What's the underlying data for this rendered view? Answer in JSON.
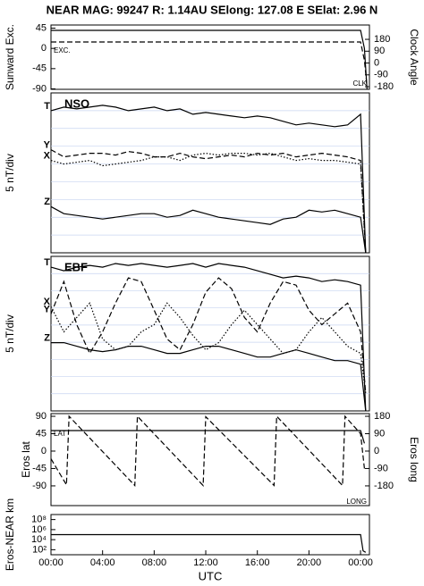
{
  "title": "NEAR MAG: 99247  R: 1.14AU  SElong: 127.08 E  SElat:   2.96 N",
  "chart_data": [
    {
      "type": "line",
      "ylabel": "Sunward Exc.",
      "y2label": "Clock Angle",
      "xlim": [
        0,
        24.69
      ],
      "ylim": [
        -91,
        52
      ],
      "yticks": [
        -90,
        -45,
        0,
        45
      ],
      "y2lim": [
        -200,
        289
      ],
      "y2ticks": [
        -180,
        -90,
        0,
        90,
        180
      ],
      "annotations": [
        "EXC.",
        "CLK"
      ],
      "series": [
        {
          "name": "Exc",
          "color": "#000000",
          "style": "solid",
          "x": [
            0,
            24,
            24.3,
            24.5
          ],
          "values": [
            40,
            40,
            0,
            -90
          ]
        },
        {
          "name": "Clk",
          "color": "#000000",
          "style": "dashed",
          "axis": "y2",
          "x": [
            0,
            24,
            24.3,
            24.5
          ],
          "values": [
            160,
            160,
            20,
            -180
          ]
        }
      ]
    },
    {
      "type": "line",
      "ylabel": "5 nT/div",
      "panel_title": "NSO",
      "grid": true,
      "xlim": [
        0,
        24.69
      ],
      "ylim": [
        0,
        45
      ],
      "show_names": true,
      "series": [
        {
          "name": "T",
          "color": "#000000",
          "style": "solid",
          "x": [
            0,
            1,
            2,
            3,
            4,
            5,
            6,
            7,
            8,
            9,
            10,
            11,
            12,
            13,
            14,
            15,
            16,
            17,
            18,
            19,
            20,
            21,
            22,
            23,
            24,
            24.4
          ],
          "values": [
            40,
            41,
            40.5,
            41,
            41.5,
            41,
            40,
            40.5,
            41,
            40,
            40.5,
            39,
            39.5,
            39,
            38.5,
            38,
            38.5,
            38,
            37,
            36,
            36.5,
            36,
            35.5,
            36,
            39,
            0
          ]
        },
        {
          "name": "Y",
          "color": "#000000",
          "style": "dashed",
          "x": [
            0,
            1,
            2,
            3,
            4,
            5,
            6,
            7,
            8,
            9,
            10,
            11,
            12,
            13,
            14,
            15,
            16,
            17,
            18,
            19,
            20,
            21,
            22,
            23,
            24,
            24.4
          ],
          "values": [
            29,
            27,
            27.5,
            28,
            28,
            27.5,
            28.5,
            28,
            27,
            27,
            28,
            27,
            26.5,
            27,
            27.5,
            27,
            28,
            27.5,
            28,
            27,
            27.5,
            28,
            27.5,
            27,
            26,
            0
          ]
        },
        {
          "name": "X",
          "color": "#000000",
          "style": "dotted",
          "x": [
            0,
            1,
            2,
            3,
            4,
            5,
            6,
            7,
            8,
            9,
            10,
            11,
            12,
            13,
            14,
            15,
            16,
            17,
            18,
            19,
            20,
            21,
            22,
            23,
            24,
            24.4
          ],
          "values": [
            26,
            25,
            25.5,
            26,
            24.5,
            25,
            25.5,
            26,
            27,
            27,
            26,
            27.5,
            28,
            27.5,
            28,
            28,
            27.5,
            28,
            27,
            26,
            26.5,
            26,
            26,
            25.5,
            25,
            0
          ]
        },
        {
          "name": "Z",
          "color": "#000000",
          "style": "solid",
          "x": [
            0,
            1,
            2,
            3,
            4,
            5,
            6,
            7,
            8,
            9,
            10,
            11,
            12,
            13,
            14,
            15,
            16,
            17,
            18,
            19,
            20,
            21,
            22,
            23,
            24,
            24.4
          ],
          "values": [
            13,
            11,
            10.5,
            10,
            9.5,
            10,
            10.5,
            11,
            11,
            10,
            10.5,
            12,
            11,
            10,
            9.5,
            9,
            8.5,
            8,
            9.5,
            10,
            12,
            11.5,
            12,
            11,
            10,
            0
          ]
        }
      ]
    },
    {
      "type": "line",
      "ylabel": "5 nT/div",
      "panel_title": "EBF",
      "grid": true,
      "xlim": [
        0,
        24.69
      ],
      "ylim": [
        0,
        43
      ],
      "show_names": true,
      "series": [
        {
          "name": "T",
          "color": "#000000",
          "style": "solid",
          "x": [
            0,
            1,
            2,
            3,
            4,
            5,
            6,
            7,
            8,
            9,
            10,
            11,
            12,
            13,
            14,
            15,
            16,
            17,
            18,
            19,
            20,
            21,
            22,
            23,
            24,
            24.4
          ],
          "values": [
            40,
            39,
            40,
            40.5,
            40,
            41,
            40.5,
            41,
            40.5,
            40,
            40.5,
            41,
            40,
            41,
            40.5,
            40,
            39,
            38,
            37,
            37.5,
            37,
            36,
            36.5,
            36,
            35,
            0
          ]
        },
        {
          "name": "X",
          "color": "#000000",
          "style": "dotted",
          "x": [
            0,
            1,
            2,
            3,
            4,
            5,
            6,
            7,
            8,
            9,
            10,
            11,
            12,
            13,
            14,
            15,
            16,
            17,
            18,
            19,
            20,
            21,
            22,
            23,
            24,
            24.4
          ],
          "values": [
            29,
            22,
            26,
            30,
            20,
            17,
            18,
            22,
            24,
            30,
            26,
            21,
            17,
            19,
            24,
            28,
            24,
            20,
            16,
            17,
            22,
            26,
            22,
            18,
            16,
            5
          ]
        },
        {
          "name": "Y",
          "color": "#000000",
          "style": "dashed",
          "x": [
            0,
            1,
            2,
            3,
            4,
            5,
            6,
            7,
            8,
            9,
            10,
            11,
            12,
            13,
            14,
            15,
            16,
            17,
            18,
            19,
            20,
            21,
            22,
            23,
            24,
            24.4
          ],
          "values": [
            27,
            36,
            24,
            16,
            22,
            30,
            37,
            36,
            28,
            20,
            17,
            24,
            33,
            37,
            34,
            26,
            22,
            30,
            36,
            35,
            28,
            24,
            27,
            30,
            22,
            5
          ]
        },
        {
          "name": "Z",
          "color": "#000000",
          "style": "solid",
          "x": [
            0,
            1,
            2,
            3,
            4,
            5,
            6,
            7,
            8,
            9,
            10,
            11,
            12,
            13,
            14,
            15,
            16,
            17,
            18,
            19,
            20,
            21,
            22,
            23,
            24,
            24.4
          ],
          "values": [
            19,
            19,
            18,
            17,
            16.5,
            17,
            18,
            18,
            17,
            16,
            16,
            17,
            18,
            18,
            17,
            16,
            15,
            15,
            16,
            17,
            16,
            15,
            14,
            14,
            13,
            0
          ]
        }
      ]
    },
    {
      "type": "line",
      "ylabel": "Eros lat",
      "y2label": "Eros long",
      "xlim": [
        0,
        24.69
      ],
      "ylim": [
        -141,
        97
      ],
      "yticks": [
        -90,
        -45,
        0,
        45,
        90
      ],
      "y2lim": [
        -282,
        194
      ],
      "y2ticks": [
        -180,
        -90,
        0,
        90,
        180
      ],
      "annotations": [
        "LAT",
        "LONG"
      ],
      "series": [
        {
          "name": "LAT",
          "color": "#000000",
          "style": "solid",
          "x": [
            0,
            24,
            24.3
          ],
          "values": [
            53,
            53,
            20
          ]
        },
        {
          "name": "LONG",
          "color": "#000000",
          "style": "dashed",
          "axis": "y2",
          "x": [
            0,
            1.2,
            1.4,
            6.5,
            6.7,
            11.8,
            12,
            17.3,
            17.5,
            22.6,
            22.8,
            24,
            24.3
          ],
          "values": [
            -40,
            -175,
            180,
            -178,
            180,
            -178,
            178,
            -178,
            180,
            -178,
            180,
            90,
            -90
          ]
        }
      ]
    },
    {
      "type": "line",
      "ylabel": "Eros-NEAR km",
      "log_scale": true,
      "xlim": [
        0,
        24.69
      ],
      "ylim": [
        10,
        1000000000
      ],
      "yticks": [
        {
          "value": 100,
          "label": "10²"
        },
        {
          "value": 10000,
          "label": "10⁴"
        },
        {
          "value": 1000000,
          "label": "10⁶"
        },
        {
          "value": 100000000,
          "label": "10⁸"
        }
      ],
      "xlabel": "UTC",
      "xticks": [
        {
          "value": 0,
          "label": "00:00"
        },
        {
          "value": 4,
          "label": "04:00"
        },
        {
          "value": 8,
          "label": "08:00"
        },
        {
          "value": 12,
          "label": "12:00"
        },
        {
          "value": 16,
          "label": "16:00"
        },
        {
          "value": 20,
          "label": "20:00"
        },
        {
          "value": 24,
          "label": "00:00"
        }
      ],
      "series": [
        {
          "name": "Range",
          "color": "#000000",
          "style": "solid",
          "x": [
            0,
            24,
            24.2,
            24.4
          ],
          "values": [
            100000,
            100000,
            60,
            30
          ]
        }
      ]
    }
  ]
}
